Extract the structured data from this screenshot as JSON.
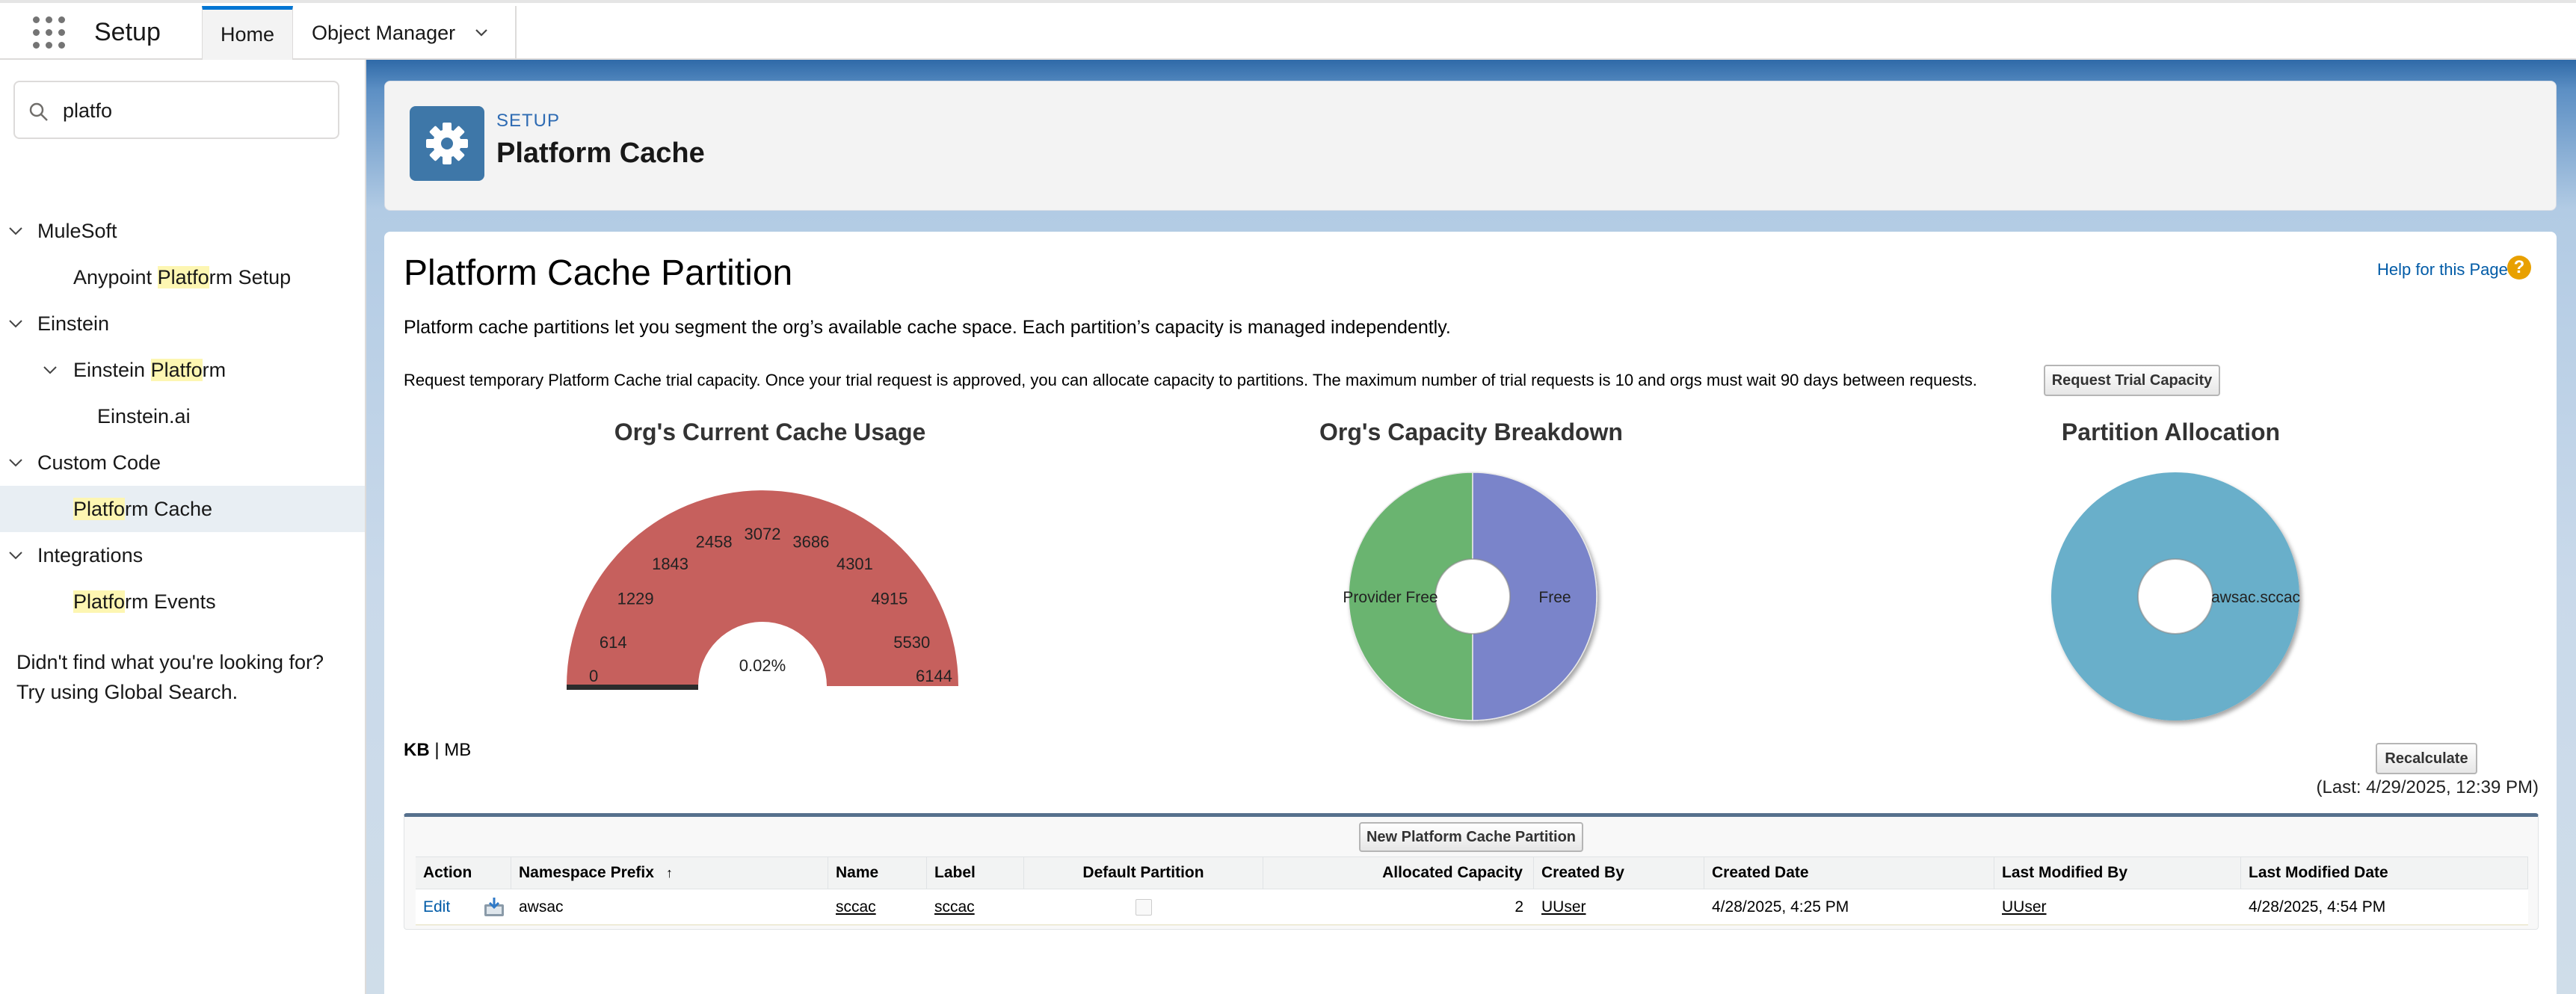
{
  "app": {
    "title": "Setup"
  },
  "nav": {
    "tabs": [
      {
        "label": "Home"
      },
      {
        "label": "Object Manager"
      }
    ]
  },
  "sidebar": {
    "search_value": "platfo",
    "groups": [
      {
        "label": "MuleSoft",
        "item_pre": "Anypoint ",
        "item_hl": "Platfo",
        "item_post": "rm Setup"
      },
      {
        "label": "Einstein",
        "sub_pre": "Einstein ",
        "sub_hl": "Platfo",
        "sub_post": "rm",
        "sub_child": "Einstein.ai"
      },
      {
        "label": "Custom Code",
        "item_pre": "",
        "item_hl": "Platfo",
        "item_post": "rm Cache"
      },
      {
        "label": "Integrations",
        "item_pre": "",
        "item_hl": "Platfo",
        "item_post": "rm Events"
      }
    ],
    "help_line1": "Didn't find what you're looking for?",
    "help_line2": "Try using Global Search."
  },
  "header": {
    "eyebrow": "SETUP",
    "title": "Platform Cache"
  },
  "page": {
    "title": "Platform Cache Partition",
    "help_link": "Help for this Page",
    "help_icon": "?",
    "intro": "Platform cache partitions let you segment the org’s available cache space. Each partition’s capacity is managed independently.",
    "trial_text": "Request temporary Platform Cache trial capacity. Once your trial request is approved, you can allocate capacity to partitions. The maximum number of trial requests is 10 and orgs must wait 90 days between requests.",
    "trial_button": "Request Trial Capacity",
    "units_kb": "KB",
    "units_sep": "|",
    "units_mb": "MB",
    "recalc_button": "Recalculate",
    "last_calculated": "(Last: 4/29/2025, 12:39 PM)",
    "new_button": "New Platform Cache Partition"
  },
  "colors": {
    "gauge": "#c6605d",
    "green": "#6ab46f",
    "blue": "#7a84ca",
    "teal": "#69afca"
  },
  "chart_data": [
    {
      "type": "gauge",
      "title": "Org's Current Cache Usage",
      "min": 0,
      "max": 6144,
      "value": 1,
      "ticks": [
        "0",
        "614",
        "1229",
        "1843",
        "2458",
        "3072",
        "3686",
        "4301",
        "4915",
        "5530",
        "6144"
      ],
      "center_label": "0.02%"
    },
    {
      "type": "pie",
      "title": "Org's Capacity Breakdown",
      "slices": [
        {
          "label": "Provider Free",
          "value": 50
        },
        {
          "label": "Free",
          "value": 50
        }
      ]
    },
    {
      "type": "pie",
      "title": "Partition Allocation",
      "slices": [
        {
          "label": "awsac.sccac",
          "value": 100
        }
      ]
    }
  ],
  "table": {
    "headers": {
      "action": "Action",
      "namespace": "Namespace Prefix",
      "sort_arrow": "↑",
      "name": "Name",
      "label": "Label",
      "default": "Default Partition",
      "allocated": "Allocated Capacity",
      "created_by": "Created By",
      "created_date": "Created Date",
      "modified_by": "Last Modified By",
      "modified_date": "Last Modified Date"
    },
    "rows": [
      {
        "edit": "Edit",
        "namespace": "awsac",
        "name": "sccac",
        "label": "sccac",
        "allocated": "2",
        "created_by": "UUser",
        "created_date": "4/28/2025, 4:25 PM",
        "modified_by": "UUser",
        "modified_date": "4/28/2025, 4:54 PM"
      }
    ]
  }
}
